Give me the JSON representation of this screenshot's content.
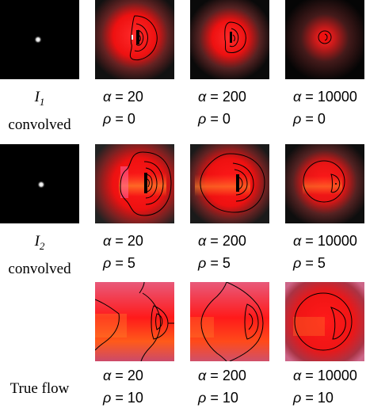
{
  "rows": [
    {
      "label_symbol": "I",
      "label_sub": "1",
      "label_word": "convolved",
      "cells": [
        {
          "alpha": "20",
          "rho": "0"
        },
        {
          "alpha": "200",
          "rho": "0"
        },
        {
          "alpha": "10000",
          "rho": "0"
        }
      ]
    },
    {
      "label_symbol": "I",
      "label_sub": "2",
      "label_word": "convolved",
      "cells": [
        {
          "alpha": "20",
          "rho": "5"
        },
        {
          "alpha": "200",
          "rho": "5"
        },
        {
          "alpha": "10000",
          "rho": "5"
        }
      ]
    },
    {
      "label_word": "True flow",
      "cells": [
        {
          "alpha": "20",
          "rho": "10"
        },
        {
          "alpha": "200",
          "rho": "10"
        },
        {
          "alpha": "10000",
          "rho": "10"
        }
      ]
    }
  ],
  "symbols": {
    "alpha": "α",
    "rho": "ρ",
    "equals": "="
  },
  "colors": {
    "flow_red": "#ff1a1a",
    "flow_orange": "#ff9a1a",
    "contour": "#000000",
    "background": "#000000"
  }
}
